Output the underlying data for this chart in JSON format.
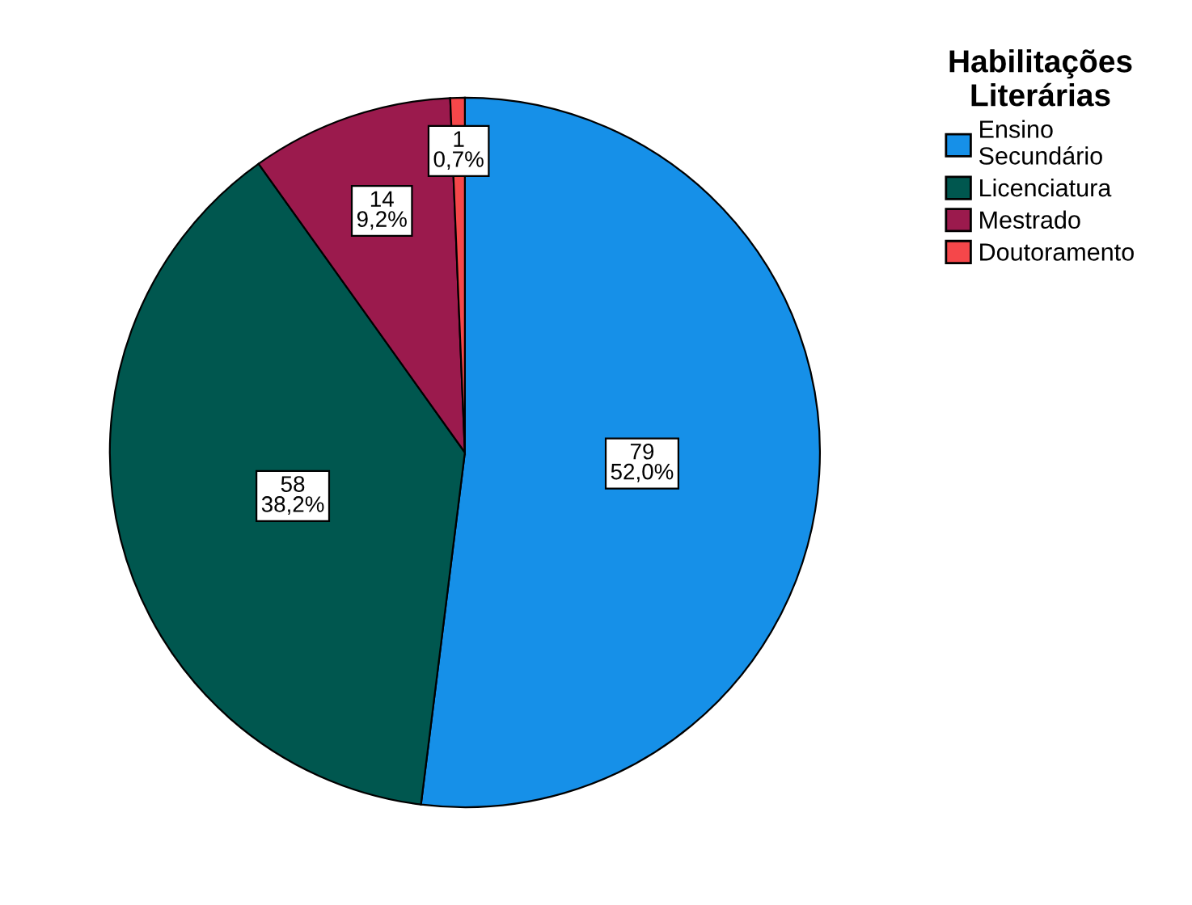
{
  "chart_data": {
    "type": "pie",
    "legend_title": "Habilitações\nLiterárias",
    "categories": [
      "Ensino\nSecundário",
      "Licenciatura",
      "Mestrado",
      "Doutoramento"
    ],
    "values": [
      79,
      58,
      14,
      1
    ],
    "colors": [
      "#1690e8",
      "#00574f",
      "#9b1a4d",
      "#f5474a"
    ],
    "value_labels": [
      "79\n52,0%",
      "58\n38,2%",
      "14\n9,2%",
      "1\n0,7%"
    ],
    "legend": "top right"
  }
}
